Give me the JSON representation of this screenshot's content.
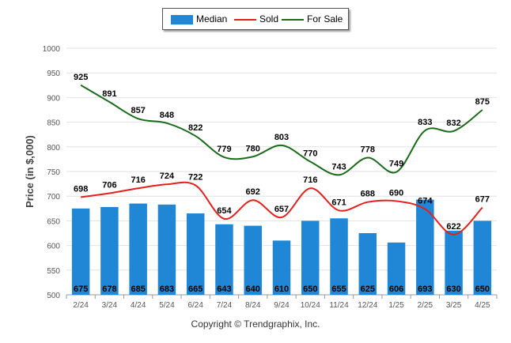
{
  "chart_data": {
    "type": "bar",
    "categories": [
      "2/24",
      "3/24",
      "4/24",
      "5/24",
      "6/24",
      "7/24",
      "8/24",
      "9/24",
      "10/24",
      "11/24",
      "12/24",
      "1/25",
      "2/25",
      "3/25",
      "4/25"
    ],
    "series": [
      {
        "name": "Median",
        "kind": "bar",
        "color": "#1f87d6",
        "values": [
          675,
          678,
          685,
          683,
          665,
          643,
          640,
          610,
          650,
          655,
          625,
          606,
          693,
          630,
          650
        ]
      },
      {
        "name": "Sold",
        "kind": "line",
        "color": "#e3201b",
        "values": [
          698,
          706,
          716,
          724,
          722,
          654,
          692,
          657,
          716,
          671,
          688,
          690,
          674,
          622,
          677
        ]
      },
      {
        "name": "For Sale",
        "kind": "line",
        "color": "#1b6b1b",
        "values": [
          925,
          891,
          857,
          848,
          822,
          779,
          780,
          803,
          770,
          743,
          778,
          749,
          833,
          832,
          875
        ]
      }
    ],
    "ylabel": "Price (in $,000)",
    "ylim": [
      500,
      1000
    ],
    "yticks": [
      500,
      550,
      600,
      650,
      700,
      750,
      800,
      850,
      900,
      950,
      1000
    ],
    "grid": true,
    "legend": "top-center"
  },
  "legend": {
    "median_label": "Median",
    "sold_label": "Sold",
    "forsale_label": "For Sale"
  },
  "copyright": "Copyright © Trendgraphix, Inc."
}
